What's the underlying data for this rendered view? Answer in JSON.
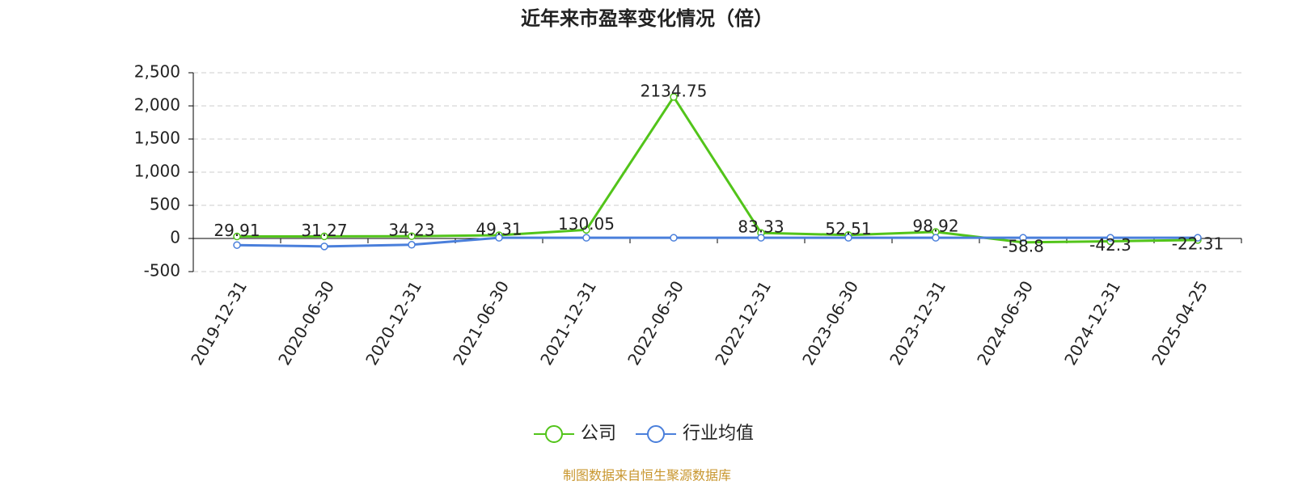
{
  "chart_data": {
    "type": "line",
    "title": "近年来市盈率变化情况（倍）",
    "categories": [
      "2019-12-31",
      "2020-06-30",
      "2020-12-31",
      "2021-06-30",
      "2021-12-31",
      "2022-06-30",
      "2022-12-31",
      "2023-06-30",
      "2023-12-31",
      "2024-06-30",
      "2024-12-31",
      "2025-04-25"
    ],
    "series": [
      {
        "name": "公司",
        "color": "#52c41a",
        "values": [
          29.91,
          31.27,
          34.23,
          49.31,
          130.05,
          2134.75,
          83.33,
          52.51,
          98.92,
          -58.8,
          -42.3,
          -22.31
        ],
        "show_labels": true
      },
      {
        "name": "行业均值",
        "color": "#4a7fdb",
        "values": [
          -100,
          -120,
          -95,
          10,
          10,
          10,
          10,
          10,
          10,
          10,
          10,
          10
        ],
        "show_labels": false
      }
    ],
    "ylim": [
      -500,
      2500
    ],
    "yticks": [
      -500,
      0,
      500,
      {
        "value": 1000,
        "label": "1,000"
      },
      {
        "value": 1500,
        "label": "1,500"
      },
      {
        "value": 2000,
        "label": "2,000"
      },
      {
        "value": 2500,
        "label": "2,500"
      }
    ],
    "grid": true,
    "legend": "bottom",
    "source": "制图数据来自恒生聚源数据库"
  }
}
